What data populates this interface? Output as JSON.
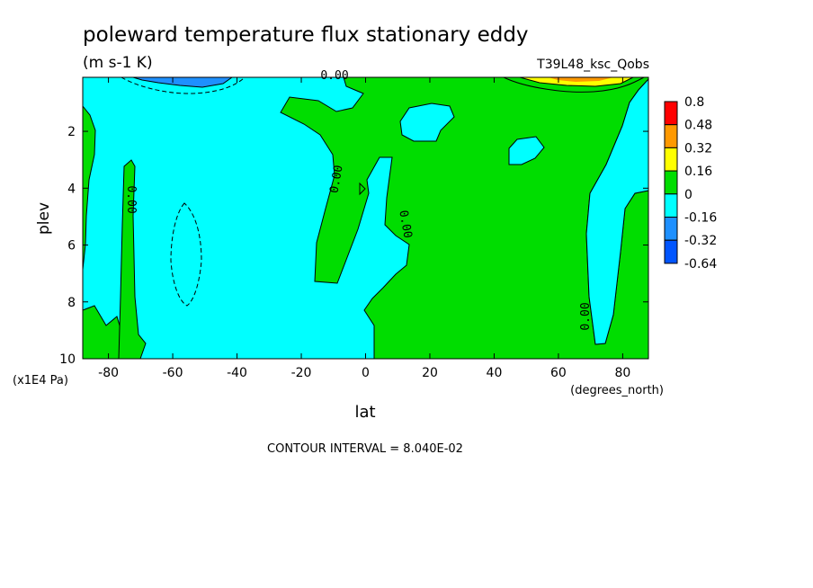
{
  "chart_data": {
    "type": "heatmap",
    "title": "poleward temperature flux stationary eddy",
    "units": "(m s-1 K)",
    "run_label": "T39L48_ksc_Qobs",
    "xlabel": "lat",
    "x_units": "(degrees_north)",
    "ylabel": "plev",
    "y_units": "(x1E4 Pa)",
    "xlim": [
      -88,
      88
    ],
    "ylim": [
      10,
      0.1
    ],
    "x_ticks": [
      "-80",
      "-60",
      "-40",
      "-20",
      "0",
      "20",
      "40",
      "60",
      "80"
    ],
    "x_tick_values": [
      -80,
      -60,
      -40,
      -20,
      0,
      20,
      40,
      60,
      80
    ],
    "y_ticks": [
      "2",
      "4",
      "6",
      "8",
      "10"
    ],
    "y_tick_values": [
      2,
      4,
      6,
      8,
      10
    ],
    "contour_interval": "CONTOUR INTERVAL = 8.040E-02",
    "contour_labels": [
      "0.00",
      "0.00",
      "0.00",
      "0.00",
      "0.00"
    ],
    "colorbar": {
      "labels": [
        "0.8",
        "0.48",
        "0.32",
        "0.16",
        "0",
        "-0.16",
        "-0.32",
        "-0.64"
      ],
      "colors": [
        "#ff0000",
        "#ff9900",
        "#ffff00",
        "#00dd00",
        "#00ffff",
        "#1e90ff",
        "#0055ff"
      ]
    },
    "colors": {
      "positive": "#00dd00",
      "negative": "#00ffff",
      "strong_negative": "#1e90ff",
      "strong_positive": "#ffff00"
    }
  }
}
